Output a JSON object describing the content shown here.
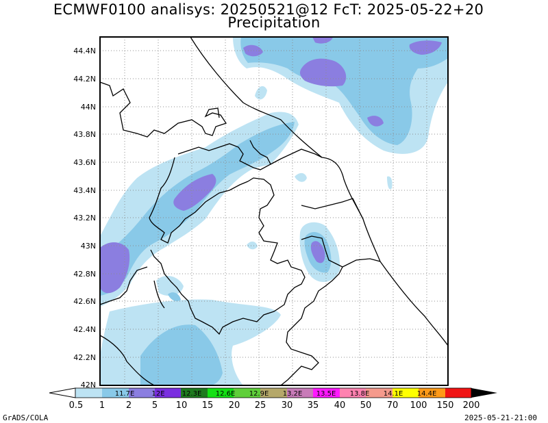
{
  "title": {
    "line1": "ECMWF0100 analisys: 20250521@12 FcT: 2025-05-22+20",
    "line2": "Precipitation"
  },
  "map": {
    "lat_labels": [
      "44.4N",
      "44.2N",
      "44N",
      "43.8N",
      "43.6N",
      "43.4N",
      "43.2N",
      "43N",
      "42.8N",
      "42.6N",
      "42.4N",
      "42.2N",
      "42N"
    ],
    "lon_labels": [
      "11.7E",
      "12E",
      "12.3E",
      "12.6E",
      "12.9E",
      "13.2E",
      "13.5E",
      "13.8E",
      "14.1E",
      "14.4E"
    ],
    "lat_range": [
      42.0,
      44.5
    ],
    "lon_range": [
      11.5,
      14.6
    ]
  },
  "colorbar": {
    "ticks": [
      "0.5",
      "1",
      "2",
      "5",
      "10",
      "15",
      "20",
      "25",
      "30",
      "35",
      "40",
      "50",
      "70",
      "100",
      "150",
      "200"
    ],
    "colors": [
      "#ffffff",
      "#bde3f3",
      "#89c9e8",
      "#8b7ee0",
      "#7a2ee0",
      "#1e7a1e",
      "#14e014",
      "#5fcf3a",
      "#b5a86a",
      "#c87bb8",
      "#ff18ff",
      "#ff82b0",
      "#f59a8c",
      "#ffff00",
      "#ff9a18",
      "#f01414",
      "#900000"
    ]
  },
  "footer": {
    "left": "GrADS/COLA",
    "right": "2025-05-21-21:00"
  }
}
